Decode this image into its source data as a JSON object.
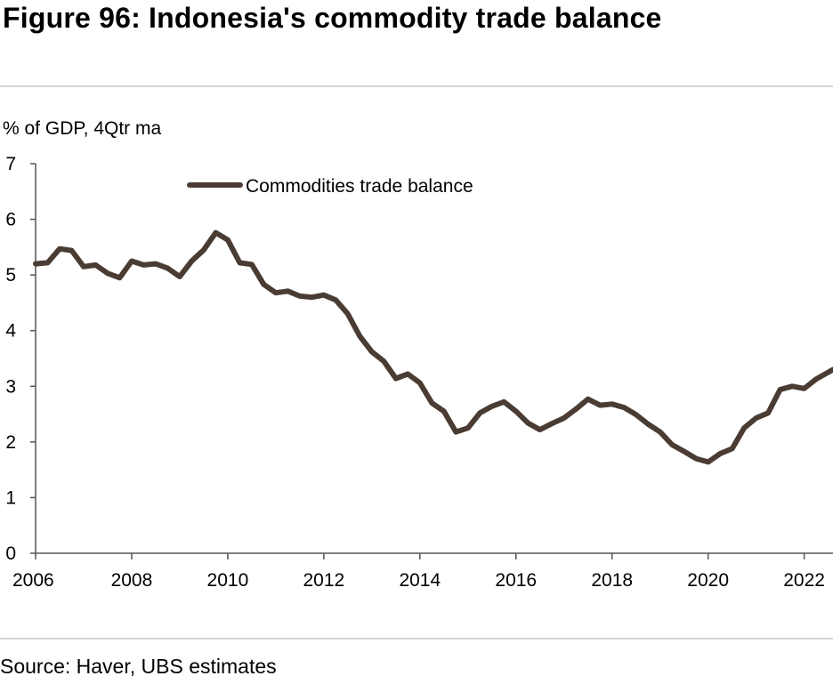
{
  "title": "Figure 96: Indonesia's commodity trade balance",
  "source": "Source: Haver, UBS estimates",
  "colors": {
    "series": "#4a3c33",
    "axis": "#555555",
    "rule": "#d6d6d6"
  },
  "chart_data": {
    "type": "line",
    "ylabel": "% of GDP, 4Qtr ma",
    "xlabel": "",
    "ylim": [
      0,
      7
    ],
    "xlim": [
      2006.0,
      2022.6
    ],
    "yticks": [
      "0",
      "1",
      "2",
      "3",
      "4",
      "5",
      "6",
      "7"
    ],
    "xticks": [
      "2006",
      "2008",
      "2010",
      "2012",
      "2014",
      "2016",
      "2018",
      "2020",
      "2022"
    ],
    "grid": false,
    "legend_position": "top-left",
    "series": [
      {
        "name": "Commodities trade balance",
        "x": [
          2006.0,
          2006.25,
          2006.5,
          2006.75,
          2007.0,
          2007.25,
          2007.5,
          2007.75,
          2008.0,
          2008.25,
          2008.5,
          2008.75,
          2009.0,
          2009.25,
          2009.5,
          2009.75,
          2010.0,
          2010.25,
          2010.5,
          2010.75,
          2011.0,
          2011.25,
          2011.5,
          2011.75,
          2012.0,
          2012.25,
          2012.5,
          2012.75,
          2013.0,
          2013.25,
          2013.5,
          2013.75,
          2014.0,
          2014.25,
          2014.5,
          2014.75,
          2015.0,
          2015.25,
          2015.5,
          2015.75,
          2016.0,
          2016.25,
          2016.5,
          2016.75,
          2017.0,
          2017.25,
          2017.5,
          2017.75,
          2018.0,
          2018.25,
          2018.5,
          2018.75,
          2019.0,
          2019.25,
          2019.5,
          2019.75,
          2020.0,
          2020.25,
          2020.5,
          2020.75,
          2021.0,
          2021.25,
          2021.5,
          2021.75,
          2022.0,
          2022.25,
          2022.6
        ],
        "values": [
          5.2,
          5.22,
          5.47,
          5.44,
          5.15,
          5.18,
          5.03,
          4.95,
          5.25,
          5.18,
          5.2,
          5.12,
          4.97,
          5.25,
          5.45,
          5.76,
          5.63,
          5.22,
          5.19,
          4.83,
          4.68,
          4.71,
          4.62,
          4.6,
          4.64,
          4.55,
          4.3,
          3.9,
          3.62,
          3.45,
          3.14,
          3.22,
          3.06,
          2.7,
          2.55,
          2.18,
          2.25,
          2.52,
          2.64,
          2.72,
          2.55,
          2.34,
          2.22,
          2.33,
          2.43,
          2.59,
          2.77,
          2.66,
          2.68,
          2.62,
          2.49,
          2.32,
          2.18,
          1.95,
          1.83,
          1.7,
          1.64,
          1.79,
          1.88,
          2.25,
          2.43,
          2.52,
          2.94,
          3.0,
          2.96,
          3.13,
          3.3
        ]
      }
    ]
  }
}
